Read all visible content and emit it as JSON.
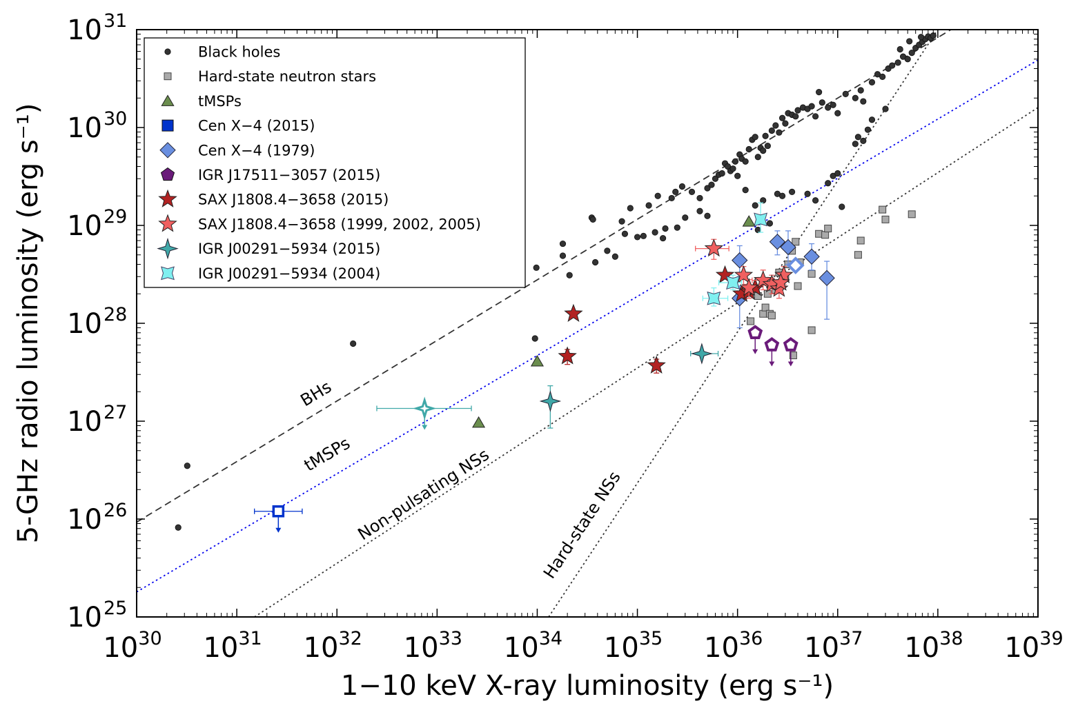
{
  "chart_data": {
    "type": "scatter",
    "title": "",
    "xlabel": "1−10 keV X-ray luminosity (erg s⁻¹)",
    "ylabel": "5-GHz radio luminosity (erg s⁻¹)",
    "x_scale": "log",
    "y_scale": "log",
    "xlim": [
      1e+30,
      1e+39
    ],
    "ylim": [
      1e+25,
      1e+31
    ],
    "x_ticks": [
      {
        "base": "10",
        "exp": "30"
      },
      {
        "base": "10",
        "exp": "31"
      },
      {
        "base": "10",
        "exp": "32"
      },
      {
        "base": "10",
        "exp": "33"
      },
      {
        "base": "10",
        "exp": "34"
      },
      {
        "base": "10",
        "exp": "35"
      },
      {
        "base": "10",
        "exp": "36"
      },
      {
        "base": "10",
        "exp": "37"
      },
      {
        "base": "10",
        "exp": "38"
      },
      {
        "base": "10",
        "exp": "39"
      }
    ],
    "y_ticks": [
      {
        "base": "10",
        "exp": "25"
      },
      {
        "base": "10",
        "exp": "26"
      },
      {
        "base": "10",
        "exp": "27"
      },
      {
        "base": "10",
        "exp": "28"
      },
      {
        "base": "10",
        "exp": "29"
      },
      {
        "base": "10",
        "exp": "30"
      },
      {
        "base": "10",
        "exp": "31"
      }
    ],
    "legend_position": "top-left",
    "legend": [
      {
        "label": "Black holes",
        "marker": "circle",
        "color": "#333333"
      },
      {
        "label": "Hard-state neutron stars",
        "marker": "square-small",
        "color": "#aaaaaa"
      },
      {
        "label": "tMSPs",
        "marker": "triangle",
        "color": "#6b8e4e"
      },
      {
        "label": "Cen X−4 (2015)",
        "marker": "square",
        "color": "#0033cc"
      },
      {
        "label": "Cen X−4 (1979)",
        "marker": "diamond",
        "color": "#6a8fe0"
      },
      {
        "label": "IGR J17511−3057 (2015)",
        "marker": "pentagon",
        "color": "#6a1b7a"
      },
      {
        "label": "SAX J1808.4−3658 (2015)",
        "marker": "star",
        "color": "#b22222"
      },
      {
        "label": "SAX J1808.4−3658 (1999, 2002, 2005)",
        "marker": "star",
        "color": "#f06060"
      },
      {
        "label": "IGR J00291−5934 (2015)",
        "marker": "diamond-thin",
        "color": "#40a8a8"
      },
      {
        "label": "IGR J00291−5934 (2004)",
        "marker": "star4",
        "color": "#80f0f0"
      }
    ],
    "lines": [
      {
        "label": "BHs",
        "style": "dashed",
        "color": "#333333",
        "p1": [
          1e+30,
          9.3e+25
        ],
        "p2": [
          1.35e+38,
          1e+31
        ]
      },
      {
        "label": "tMSPs",
        "style": "dotted",
        "color": "#0000ee",
        "p1": [
          1e+30,
          1.8e+25
        ],
        "p2": [
          1e+39,
          4.9e+30
        ]
      },
      {
        "label": "Non-pulsating NSs",
        "style": "dotted",
        "color": "#333333",
        "p1": [
          1.5e+31,
          1e+25
        ],
        "p2": [
          1e+39,
          1.6e+30
        ]
      },
      {
        "label": "Hard-state NSs",
        "style": "dotted",
        "color": "#333333",
        "p1": [
          1.3e+34,
          1e+25
        ],
        "p2": [
          1e+38,
          1e+31
        ]
      }
    ],
    "series": [
      {
        "name": "Black holes",
        "points": [
          [
            3.2e+30,
            3.5e+26
          ],
          [
            2.6e+30,
            8.2e+25
          ],
          [
            1.45e+32,
            6.2e+27
          ],
          [
            9.8e+33,
            3.7e+28
          ],
          [
            9.5e+33,
            7e+27
          ],
          [
            1.8e+34,
            6.5e+28
          ],
          [
            1.8e+34,
            4.9e+28
          ],
          [
            2.1e+34,
            3.1e+28
          ],
          [
            3.5e+34,
            1.2e+29
          ],
          [
            3.6e+34,
            1.15e+29
          ],
          [
            3.8e+34,
            4.2e+28
          ],
          [
            5e+34,
            5.5e+28
          ],
          [
            6e+34,
            4.8e+28
          ],
          [
            7e+34,
            1.1e+29
          ],
          [
            7.5e+34,
            8.2e+28
          ],
          [
            8.5e+34,
            1.5e+29
          ],
          [
            1e+35,
            7.6e+28
          ],
          [
            1.15e+35,
            7.8e+28
          ],
          [
            1.3e+35,
            1.6e+29
          ],
          [
            1.6e+35,
            2e+29
          ],
          [
            1.8e+35,
            7.4e+28
          ],
          [
            2.2e+35,
            1.9e+29
          ],
          [
            2.4e+35,
            2.2e+29
          ],
          [
            2.8e+35,
            2.5e+29
          ],
          [
            3.5e+35,
            2.2e+29
          ],
          [
            4.2e+35,
            1.9e+29
          ],
          [
            5e+35,
            2.4e+29
          ],
          [
            5.5e+35,
            2.6e+29
          ],
          [
            6e+35,
            3e+29
          ],
          [
            6.5e+35,
            3.3e+29
          ],
          [
            7e+35,
            3.4e+29
          ],
          [
            7.5e+35,
            4.3e+29
          ],
          [
            8e+35,
            4e+29
          ],
          [
            8.5e+35,
            3.6e+29
          ],
          [
            9e+35,
            3.8e+29
          ],
          [
            9.5e+35,
            4.5e+29
          ],
          [
            1e+36,
            3.2e+29
          ],
          [
            1.05e+36,
            5.3e+29
          ],
          [
            1.1e+36,
            4.8e+29
          ],
          [
            1.2e+36,
            4.5e+29
          ],
          [
            1.3e+36,
            6e+29
          ],
          [
            1.4e+36,
            7.5e+29
          ],
          [
            1.5e+36,
            8e+29
          ],
          [
            1.6e+36,
            5e+29
          ],
          [
            1.7e+36,
            6.2e+29
          ],
          [
            1.8e+36,
            5.8e+29
          ],
          [
            1.9e+36,
            8.2e+29
          ],
          [
            2e+36,
            6.5e+29
          ],
          [
            2.2e+36,
            9.3e+29
          ],
          [
            2.4e+36,
            1.05e+30
          ],
          [
            2.6e+36,
            8.9e+29
          ],
          [
            2.8e+36,
            1.25e+30
          ],
          [
            3e+36,
            1.1e+30
          ],
          [
            3.2e+36,
            1.4e+30
          ],
          [
            3.5e+36,
            1.35e+30
          ],
          [
            3.8e+36,
            1.3e+30
          ],
          [
            4e+36,
            1.5e+30
          ],
          [
            4.5e+36,
            1.6e+30
          ],
          [
            5e+36,
            1.55e+30
          ],
          [
            5.5e+36,
            1.65e+30
          ],
          [
            6e+36,
            1.3e+30
          ],
          [
            6.5e+36,
            2.3e+30
          ],
          [
            7e+36,
            1.8e+30
          ],
          [
            8e+36,
            1.6e+30
          ],
          [
            9e+36,
            1.7e+30
          ],
          [
            1e+37,
            1.4e+30
          ],
          [
            1.2e+37,
            2.2e+30
          ],
          [
            1.5e+37,
            2e+30
          ],
          [
            1.7e+37,
            2.4e+30
          ],
          [
            1.8e+37,
            1.85e+30
          ],
          [
            2.2e+37,
            2.9e+30
          ],
          [
            2.5e+37,
            3.5e+30
          ],
          [
            2.8e+37,
            3.3e+30
          ],
          [
            3.2e+37,
            4e+30
          ],
          [
            3.5e+37,
            4.3e+30
          ],
          [
            4e+37,
            4.6e+30
          ],
          [
            4.5e+37,
            5.3e+30
          ],
          [
            5e+37,
            5e+30
          ],
          [
            5.5e+37,
            5.8e+30
          ],
          [
            6e+37,
            6.5e+30
          ],
          [
            6.5e+37,
            7e+30
          ],
          [
            7e+37,
            7.5e+30
          ],
          [
            7.5e+37,
            8e+30
          ],
          [
            8e+37,
            8.5e+30
          ],
          [
            8.5e+37,
            8.2e+30
          ],
          [
            9e+37,
            8.7e+30
          ],
          [
            6.8e+37,
            8.4e+30
          ],
          [
            5.2e+37,
            7.6e+30
          ],
          [
            4.2e+37,
            6.3e+30
          ],
          [
            2.5e+36,
            2.1e+29
          ],
          [
            2.8e+36,
            2e+29
          ],
          [
            3.5e+36,
            2.2e+29
          ],
          [
            5e+36,
            2.1e+29
          ],
          [
            6e+36,
            1.8e+29
          ],
          [
            8e+36,
            2.7e+29
          ],
          [
            9e+36,
            3.2e+29
          ],
          [
            1e+37,
            3.4e+29
          ],
          [
            1.1e+37,
            1.55e+29
          ],
          [
            1.5e+37,
            6.8e+29
          ],
          [
            1.6e+37,
            8e+29
          ],
          [
            1.8e+37,
            7.3e+29
          ],
          [
            2e+37,
            9.5e+29
          ],
          [
            2.2e+37,
            1.2e+30
          ],
          [
            3e+37,
            1.55e+30
          ],
          [
            1.8e+36,
            1.8e+29
          ],
          [
            1.5e+36,
            1.6e+29
          ],
          [
            1.2e+36,
            2.3e+29
          ],
          [
            4.2e+35,
            1.4e+29
          ],
          [
            5e+35,
            1.25e+29
          ],
          [
            3e+35,
            1.2e+29
          ],
          [
            2.5e+35,
            9.5e+28
          ],
          [
            1.9e+35,
            9.3e+28
          ],
          [
            1.5e+35,
            8.5e+28
          ],
          [
            1.6e+36,
            9e+28
          ],
          [
            2.1e+36,
            1.05e+29
          ]
        ]
      },
      {
        "name": "Hard-state neutron stars",
        "points": [
          [
            1.35e+36,
            1.05e+28
          ],
          [
            1.6e+36,
            1.9e+28
          ],
          [
            1.8e+36,
            1.25e+28
          ],
          [
            1.9e+36,
            1.45e+28
          ],
          [
            2e+36,
            2e+28
          ],
          [
            2.1e+36,
            1.25e+28
          ],
          [
            2.2e+36,
            1.2e+28
          ],
          [
            2.4e+36,
            2.2e+28
          ],
          [
            2.6e+36,
            3.3e+28
          ],
          [
            3e+36,
            3e+28
          ],
          [
            3.2e+36,
            4e+28
          ],
          [
            3.5e+36,
            5.5e+28
          ],
          [
            3.8e+36,
            6.8e+28
          ],
          [
            4e+36,
            2.4e+28
          ],
          [
            4.2e+36,
            4.2e+28
          ],
          [
            5.5e+36,
            3.2e+28
          ],
          [
            6.5e+36,
            8.2e+28
          ],
          [
            7.5e+36,
            8e+28
          ],
          [
            8e+36,
            9.3e+28
          ],
          [
            5.5e+36,
            8.5e+27
          ],
          [
            3.6e+36,
            4.7e+27
          ],
          [
            1.6e+37,
            5e+28
          ],
          [
            1.7e+37,
            7e+28
          ],
          [
            2.8e+37,
            1.45e+29
          ],
          [
            3e+37,
            1.15e+29
          ],
          [
            5.5e+37,
            1.3e+29
          ]
        ]
      },
      {
        "name": "tMSPs",
        "points": [
          [
            1.3e+36,
            1.1e+29
          ],
          [
            1e+34,
            4.1e+27
          ],
          [
            2.6e+33,
            9.7e+26
          ]
        ]
      },
      {
        "name": "Cen X−4 (2015)",
        "points": [
          {
            "x": 2.6e+31,
            "y": 1.2e+26,
            "xerr": [
              1.5e+31,
              4.5e+31
            ],
            "upper_limit": true,
            "open": true
          }
        ]
      },
      {
        "name": "Cen X−4 (1979)",
        "points": [
          {
            "x": 1.05e+36,
            "y": 4.4e+28,
            "yerr": [
              3e+28,
              6.2e+28
            ]
          },
          {
            "x": 1.05e+36,
            "y": 1.8e+28,
            "yerr": [
              9e+27,
              2.4e+28
            ]
          },
          {
            "x": 2.5e+36,
            "y": 6.8e+28,
            "yerr": [
              5e+28,
              8.8e+28
            ]
          },
          {
            "x": 3.2e+36,
            "y": 6e+28,
            "yerr": [
              4e+28,
              8.8e+28
            ]
          },
          {
            "x": 3.8e+36,
            "y": 3.9e+28,
            "open": true
          },
          {
            "x": 5.5e+36,
            "y": 4.8e+28,
            "yerr": [
              3.5e+28,
              6.5e+28
            ]
          },
          {
            "x": 7.8e+36,
            "y": 2.9e+28,
            "yerr": [
              1.1e+28,
              4.3e+28
            ]
          }
        ]
      },
      {
        "name": "IGR J17511−3057 (2015)",
        "points": [
          {
            "x": 1.5e+36,
            "y": 8e+27,
            "upper_limit": true,
            "open": true
          },
          {
            "x": 2.2e+36,
            "y": 6e+27,
            "upper_limit": true,
            "open": true
          },
          {
            "x": 3.4e+36,
            "y": 6e+27,
            "upper_limit": true,
            "open": true
          }
        ]
      },
      {
        "name": "SAX J1808.4−3658 (2015)",
        "points": [
          {
            "x": 2.3e+34,
            "y": 1.25e+28
          },
          {
            "x": 2e+34,
            "y": 4.6e+27,
            "yerr": [
              3.8e+27,
              5.4e+27
            ]
          },
          {
            "x": 1.55e+35,
            "y": 3.7e+27,
            "yerr": [
              3.1e+27,
              4.3e+27
            ]
          },
          {
            "x": 7.5e+35,
            "y": 3.1e+28
          },
          {
            "x": 1.1e+36,
            "y": 2e+28
          },
          {
            "x": 1.3e+36,
            "y": 2.1e+28
          },
          {
            "x": 1.5e+36,
            "y": 2.3e+28
          }
        ]
      },
      {
        "name": "SAX J1808.4−3658 (1999, 2002, 2005)",
        "points": [
          {
            "x": 5.8e+35,
            "y": 5.8e+28,
            "xerr": [
              3.8e+35,
              8.2e+35
            ],
            "yerr": [
              4.5e+28,
              7.2e+28
            ]
          },
          {
            "x": 1.15e+36,
            "y": 3.1e+28,
            "yerr": [
              2.5e+28,
              3.8e+28
            ]
          },
          {
            "x": 1.3e+36,
            "y": 2.3e+28,
            "yerr": [
              1.8e+28,
              2.8e+28
            ]
          },
          {
            "x": 1.8e+36,
            "y": 2.75e+28,
            "xerr": [
              1.4e+36,
              2.3e+36
            ],
            "yerr": [
              2.2e+28,
              3.5e+28
            ]
          },
          {
            "x": 2.2e+36,
            "y": 2.5e+28,
            "yerr": [
              2e+28,
              3.1e+28
            ]
          },
          {
            "x": 2.6e+36,
            "y": 2.25e+28,
            "yerr": [
              1.8e+28,
              2.8e+28
            ]
          },
          {
            "x": 2.9e+36,
            "y": 3.1e+28,
            "yerr": [
              2.5e+28,
              3.8e+28
            ]
          },
          {
            "x": 2.7e+36,
            "y": 2.6e+28,
            "yerr": [
              2.1e+28,
              3.2e+28
            ]
          }
        ]
      },
      {
        "name": "IGR J00291−5934 (2015)",
        "points": [
          {
            "x": 7.5e+32,
            "y": 1.35e+27,
            "xerr": [
              2.5e+32,
              2.2e+33
            ],
            "upper_limit": true,
            "open": true
          },
          {
            "x": 1.35e+34,
            "y": 1.6e+27,
            "yerr": [
              8.5e+26,
              2.3e+27
            ]
          },
          {
            "x": 4.4e+35,
            "y": 4.9e+27,
            "xerr": [
              3.4e+35,
              6.4e+35
            ]
          }
        ]
      },
      {
        "name": "IGR J00291−5934 (2004)",
        "points": [
          {
            "x": 1.7e+36,
            "y": 1.15e+29,
            "yerr": [
              8.5e+28,
              1.7e+29
            ]
          },
          {
            "x": 9e+35,
            "y": 2.6e+28,
            "xerr": [
              6.5e+35,
              1.1e+36
            ],
            "yerr": [
              2.2e+28,
              3.1e+28
            ]
          },
          {
            "x": 5.8e+35,
            "y": 1.8e+28,
            "xerr": [
              4.5e+35,
              8e+35
            ],
            "yerr": [
              1.5e+28,
              2.3e+28
            ]
          }
        ]
      }
    ]
  }
}
